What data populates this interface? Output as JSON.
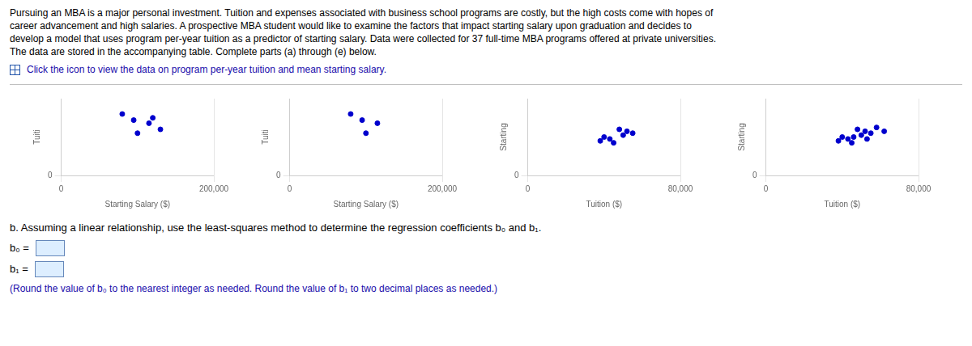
{
  "annotations": [
    "Pursuing an MBA is a major personal investment. Tuition and expenses associated with business school programs are costly, but the high costs come with hopes of",
    "career advancement and high salaries. A prospective MBA student would like to examine the factors that impact starting salary upon graduation and decides to",
    "develop a model that uses program per-year tuition as a predictor of starting salary. Data were collected for 37 full-time MBA programs offered at private universities.",
    "The data are stored in the accompanying table. Complete parts (a) through (e) below.",
    "Click the icon to view the data on program per-year tuition and mean starting salary.",
    "b. Assuming a linear relationship, use the least-squares method to determine the regression coefficients b₀ and b₁.",
    "b₀ =",
    "b₁ =",
    "(Round the value of b₀ to the nearest integer as needed. Round the value of b₁ to two decimal places as needed.)"
  ],
  "chart_data": [
    {
      "type": "scatter",
      "x_label": "Starting Salary ($)",
      "y_label": "Tuiti",
      "color": "#0000cd",
      "grid": true,
      "xlim": [
        0,
        200000
      ],
      "ylim": [
        0,
        100000
      ],
      "xticks": [
        0,
        {
          "value": 200000,
          "label": "200,000"
        }
      ],
      "yticks": [
        0
      ],
      "x": [
        95000,
        115000,
        130000,
        100000,
        80000,
        120000
      ],
      "values": [
        72000,
        68000,
        60000,
        55000,
        80000,
        75000
      ]
    },
    {
      "type": "scatter",
      "x_label": "Starting Salary ($)",
      "y_label": "Tuiti",
      "color": "#0000cd",
      "grid": true,
      "xlim": [
        0,
        200000
      ],
      "ylim": [
        0,
        100000
      ],
      "xticks": [
        0,
        {
          "value": 200000,
          "label": "200,000"
        }
      ],
      "yticks": [
        0
      ],
      "x": [
        95000,
        115000,
        100000,
        80000
      ],
      "values": [
        72000,
        68000,
        55000,
        80000
      ]
    },
    {
      "type": "scatter",
      "x_label": "Tuition ($)",
      "y_label": "Starting",
      "color": "#0000cd",
      "grid": true,
      "xlim": [
        0,
        80000
      ],
      "ylim": [
        0,
        200000
      ],
      "xticks": [
        0,
        {
          "value": 80000,
          "label": "80,000"
        }
      ],
      "yticks": [
        0
      ],
      "x": [
        40000,
        48000,
        52000,
        55000,
        43000,
        38000,
        50000,
        45000
      ],
      "values": [
        100000,
        120000,
        115000,
        110000,
        95000,
        90000,
        105000,
        85000
      ]
    },
    {
      "type": "scatter",
      "x_label": "Tuition ($)",
      "y_label": "Starting",
      "color": "#0000cd",
      "grid": true,
      "xlim": [
        0,
        80000
      ],
      "ylim": [
        0,
        200000
      ],
      "xticks": [
        0,
        {
          "value": 80000,
          "label": "80,000"
        }
      ],
      "yticks": [
        0
      ],
      "x": [
        40000,
        48000,
        52000,
        55000,
        43000,
        38000,
        50000,
        45000,
        58000,
        62000,
        46000,
        53000
      ],
      "values": [
        100000,
        120000,
        115000,
        110000,
        95000,
        90000,
        105000,
        85000,
        125000,
        115000,
        100000,
        95000
      ]
    }
  ]
}
